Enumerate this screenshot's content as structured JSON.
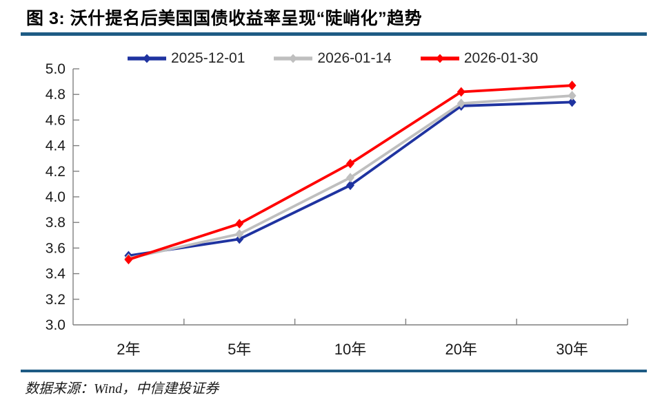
{
  "title": "图 3: 沃什提名后美国国债收益率呈现“陡峭化”趋势",
  "source_note": "数据来源：Wind，中信建投证券",
  "colors": {
    "rule_blue": "#1E5B84",
    "axis_gray": "#7f7f7f",
    "tick_text": "#1a1a1a"
  },
  "chart_data": {
    "type": "line",
    "title": "图 3: 沃什提名后美国国债收益率呈现“陡峭化”趋势",
    "categories": [
      "2年",
      "5年",
      "10年",
      "20年",
      "30年"
    ],
    "series": [
      {
        "name": "2025-12-01",
        "color": "#1F33A0",
        "values": [
          3.54,
          3.67,
          4.09,
          4.71,
          4.74
        ]
      },
      {
        "name": "2026-01-14",
        "color": "#BFBFBF",
        "values": [
          3.52,
          3.71,
          4.15,
          4.73,
          4.79
        ]
      },
      {
        "name": "2026-01-30",
        "color": "#FF0000",
        "values": [
          3.51,
          3.79,
          4.26,
          4.82,
          4.87
        ]
      }
    ],
    "xlabel": "",
    "ylabel": "",
    "ylim": [
      3.0,
      5.0
    ],
    "ytick_step": 0.2,
    "ytick_format_decimals": 1,
    "grid": false,
    "legend_position": "top",
    "marker": "diamond"
  }
}
